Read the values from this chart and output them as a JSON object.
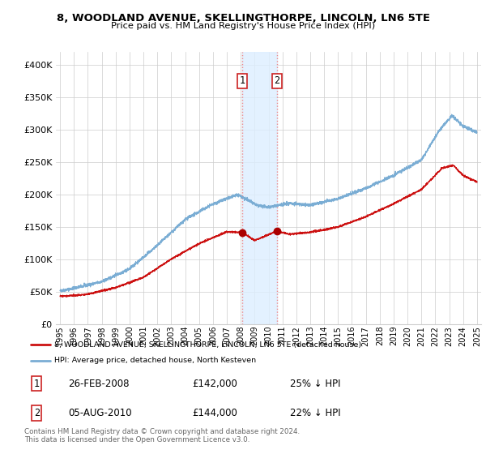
{
  "title": "8, WOODLAND AVENUE, SKELLINGTHORPE, LINCOLN, LN6 5TE",
  "subtitle": "Price paid vs. HM Land Registry's House Price Index (HPI)",
  "hpi_color": "#7aadd4",
  "price_color": "#cc1111",
  "marker_color": "#aa0000",
  "shade_color": "#ddeeff",
  "vline_color": "#ee8888",
  "background": "#ffffff",
  "grid_color": "#cccccc",
  "legend_label_red": "8, WOODLAND AVENUE, SKELLINGTHORPE, LINCOLN, LN6 5TE (detached house)",
  "legend_label_blue": "HPI: Average price, detached house, North Kesteven",
  "transaction1_date": "26-FEB-2008",
  "transaction1_price": "£142,000",
  "transaction1_hpi": "25% ↓ HPI",
  "transaction1_x": 2008.12,
  "transaction1_y": 142000,
  "transaction2_date": "05-AUG-2010",
  "transaction2_price": "£144,000",
  "transaction2_hpi": "22% ↓ HPI",
  "transaction2_x": 2010.59,
  "transaction2_y": 144000,
  "footer": "Contains HM Land Registry data © Crown copyright and database right 2024.\nThis data is licensed under the Open Government Licence v3.0.",
  "ylim": [
    0,
    420000
  ],
  "xlim_start": 1994.7,
  "xlim_end": 2025.3
}
